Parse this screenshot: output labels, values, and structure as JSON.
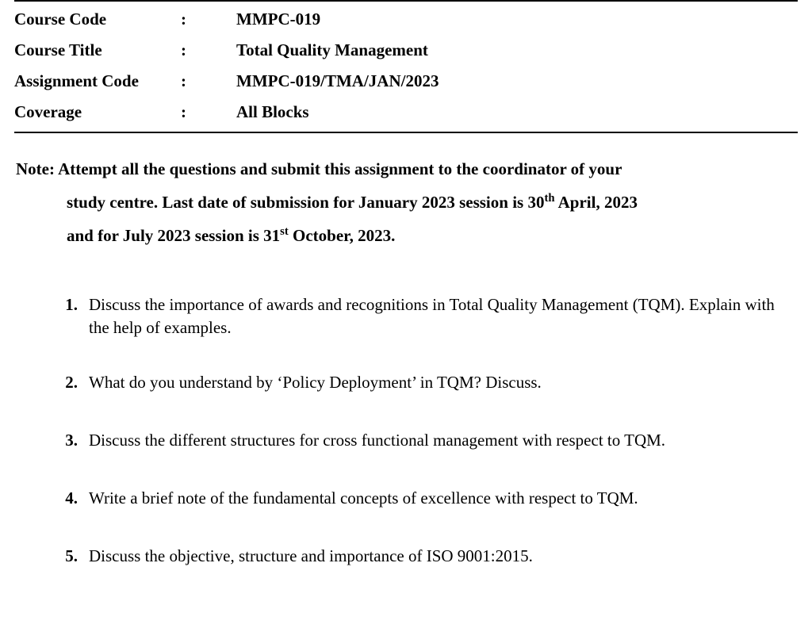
{
  "header": {
    "rows": [
      {
        "label": "Course Code",
        "value": "MMPC-019"
      },
      {
        "label": "Course Title",
        "value": "Total Quality Management"
      },
      {
        "label": "Assignment Code",
        "value": "MMPC-019/TMA/JAN/2023"
      },
      {
        "label": "Coverage",
        "value": "All Blocks"
      }
    ],
    "colon": ":"
  },
  "note": {
    "prefix": "Note:",
    "line1_after_prefix": "Attempt all the questions and submit this assignment to the coordinator of your",
    "line2_a": "study centre. Last date of submission for January 2023 session is 30",
    "line2_sup": "th",
    "line2_b": " April, 2023",
    "line3_a": "and for July 2023 session is 31",
    "line3_sup": "st",
    "line3_b": " October, 2023."
  },
  "questions": [
    {
      "num": "1.",
      "text": "Discuss the importance of awards and recognitions in Total Quality Management (TQM). Explain with the help of examples."
    },
    {
      "num": "2.",
      "text": "What do you understand by ‘Policy Deployment’ in TQM? Discuss."
    },
    {
      "num": "3.",
      "text": "Discuss the different structures for cross functional management with respect to TQM."
    },
    {
      "num": "4.",
      "text": "Write a brief note of the fundamental concepts of excellence with respect to TQM."
    },
    {
      "num": "5.",
      "text": "Discuss the objective, structure and importance of ISO 9001:2015."
    }
  ],
  "styles": {
    "background_color": "#ffffff",
    "text_color": "#000000",
    "border_color": "#000000",
    "font_family": "Times New Roman",
    "header_fontsize": 21,
    "body_fontsize": 21,
    "note_lineheight": 2.0,
    "question_lineheight": 1.38
  }
}
